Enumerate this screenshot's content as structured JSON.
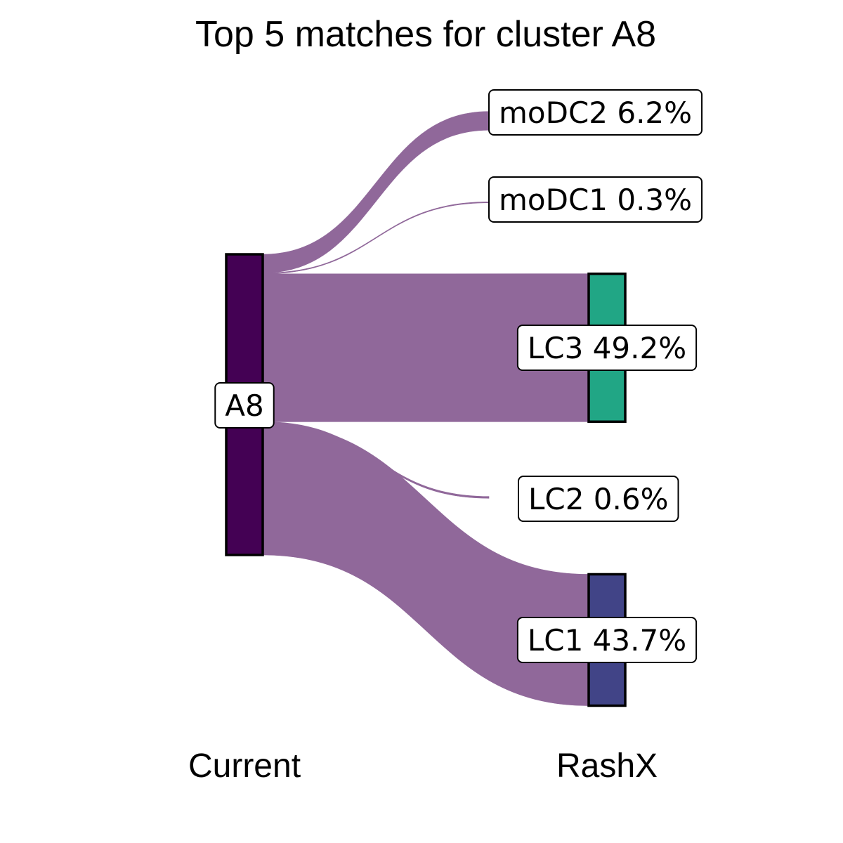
{
  "chart_data": {
    "type": "sankey",
    "title": "Top 5 matches for cluster A8",
    "axes": [
      "Current",
      "RashX"
    ],
    "source": {
      "name": "A8",
      "color": "#440154"
    },
    "flow_color": "#90689a",
    "targets": [
      {
        "name": "moDC2",
        "percent": 6.2,
        "label": "moDC2 6.2%",
        "color": null
      },
      {
        "name": "moDC1",
        "percent": 0.3,
        "label": "moDC1 0.3%",
        "color": null
      },
      {
        "name": "LC3",
        "percent": 49.2,
        "label": "LC3 49.2%",
        "color": "#21a685"
      },
      {
        "name": "LC2",
        "percent": 0.6,
        "label": "LC2 0.6%",
        "color": null
      },
      {
        "name": "LC1",
        "percent": 43.7,
        "label": "LC1 43.7%",
        "color": "#414487"
      }
    ]
  }
}
